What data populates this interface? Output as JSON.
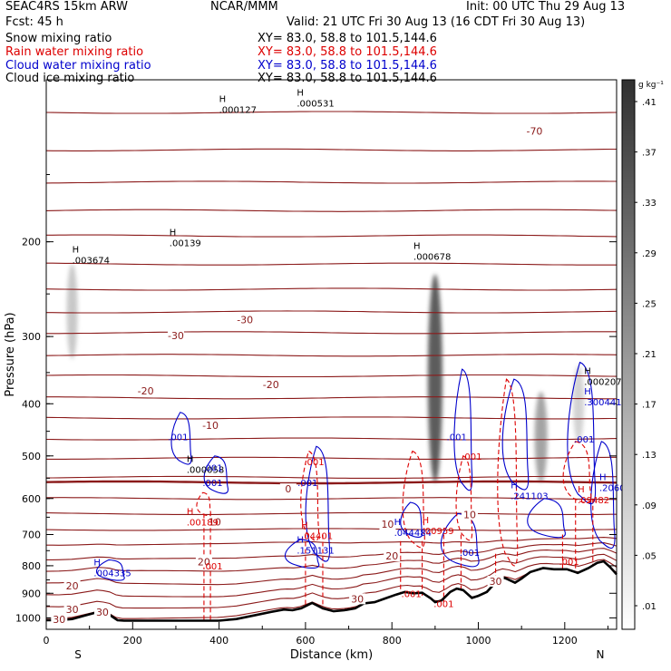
{
  "header": {
    "model": "SEAC4RS 15km ARW",
    "org": "NCAR/MMM",
    "init": "Init: 00 UTC Thu 29 Aug 13",
    "fcst": "Fcst:    45 h",
    "valid": "Valid: 21 UTC Fri 30 Aug 13 (16 CDT Fri 30 Aug 13)",
    "fields": [
      {
        "name": "Snow mixing ratio",
        "xy": "XY=   83.0, 58.8 to 101.5,144.6",
        "color": "#000000"
      },
      {
        "name": "Rain water mixing ratio",
        "xy": "XY=  83.0, 58.8 to 101.5,144.6",
        "color": "#dd0000"
      },
      {
        "name": "Cloud water mixing ratio",
        "xy": "XY=  83.0, 58.8 to 101.5,144.6",
        "color": "#0000cc"
      },
      {
        "name": "Cloud ice mixing ratio",
        "xy": "XY=   83.0, 58.8 to 101.5,144.6",
        "color": "#000000"
      }
    ]
  },
  "chart_data": {
    "type": "heatmap",
    "xlabel": "Distance (km)",
    "ylabel": "Pressure (hPa)",
    "xlim": [
      0,
      1320
    ],
    "ylim": [
      1050,
      100
    ],
    "y_scale": "log",
    "x_ticks": [
      0,
      200,
      400,
      600,
      800,
      1000,
      1200
    ],
    "y_ticks": [
      200,
      300,
      400,
      500,
      600,
      700,
      800,
      900,
      1000
    ],
    "x_end_labels": {
      "left": "S",
      "right": "N"
    },
    "colorbar": {
      "unit": "g kg⁻¹",
      "ticks": [
        ".01",
        ".05",
        ".09",
        ".13",
        ".17",
        ".21",
        ".25",
        ".29",
        ".33",
        ".37",
        ".41"
      ]
    },
    "terrain_surface_pressure": [
      [
        0,
        1010
      ],
      [
        30,
        1010
      ],
      [
        60,
        1005
      ],
      [
        90,
        990
      ],
      [
        120,
        975
      ],
      [
        145,
        985
      ],
      [
        165,
        1010
      ],
      [
        180,
        1012
      ],
      [
        300,
        1012
      ],
      [
        380,
        1012
      ],
      [
        400,
        1012
      ],
      [
        440,
        1005
      ],
      [
        480,
        990
      ],
      [
        520,
        975
      ],
      [
        550,
        965
      ],
      [
        570,
        968
      ],
      [
        590,
        960
      ],
      [
        615,
        938
      ],
      [
        640,
        960
      ],
      [
        665,
        972
      ],
      [
        690,
        968
      ],
      [
        715,
        960
      ],
      [
        735,
        940
      ],
      [
        760,
        935
      ],
      [
        785,
        920
      ],
      [
        810,
        905
      ],
      [
        830,
        895
      ],
      [
        850,
        900
      ],
      [
        870,
        898
      ],
      [
        890,
        920
      ],
      [
        900,
        935
      ],
      [
        915,
        928
      ],
      [
        935,
        895
      ],
      [
        950,
        882
      ],
      [
        965,
        888
      ],
      [
        985,
        918
      ],
      [
        1000,
        910
      ],
      [
        1020,
        895
      ],
      [
        1045,
        850
      ],
      [
        1060,
        842
      ],
      [
        1085,
        860
      ],
      [
        1100,
        845
      ],
      [
        1120,
        822
      ],
      [
        1150,
        808
      ],
      [
        1175,
        812
      ],
      [
        1205,
        812
      ],
      [
        1230,
        825
      ],
      [
        1255,
        808
      ],
      [
        1275,
        790
      ],
      [
        1290,
        785
      ],
      [
        1305,
        805
      ],
      [
        1320,
        830
      ]
    ],
    "isotherm_labels": [
      {
        "x": 230,
        "p": 380,
        "value": "-20"
      },
      {
        "x": 300,
        "p": 300,
        "value": "-30"
      },
      {
        "x": 460,
        "p": 280,
        "value": "-30"
      },
      {
        "x": 380,
        "p": 440,
        "value": "-10"
      },
      {
        "x": 520,
        "p": 370,
        "value": "-20"
      },
      {
        "x": 1130,
        "p": 125,
        "value": "-70"
      },
      {
        "x": 560,
        "p": 578,
        "value": "0"
      },
      {
        "x": 390,
        "p": 665,
        "value": "10"
      },
      {
        "x": 790,
        "p": 672,
        "value": "10"
      },
      {
        "x": 980,
        "p": 645,
        "value": "10"
      },
      {
        "x": 365,
        "p": 790,
        "value": "20"
      },
      {
        "x": 800,
        "p": 770,
        "value": "20"
      },
      {
        "x": 60,
        "p": 875,
        "value": "20"
      },
      {
        "x": 60,
        "p": 968,
        "value": "30"
      },
      {
        "x": 130,
        "p": 980,
        "value": "30"
      },
      {
        "x": 720,
        "p": 925,
        "value": "30"
      },
      {
        "x": 1040,
        "p": 858,
        "value": "30"
      },
      {
        "x": 30,
        "p": 1010,
        "value": "30"
      }
    ],
    "maxima_labels": [
      {
        "x": 60,
        "p": 215,
        "value": ".003674",
        "color": "#000000"
      },
      {
        "x": 285,
        "p": 200,
        "value": ".00139",
        "color": "#000000"
      },
      {
        "x": 400,
        "p": 113,
        "value": ".000127",
        "color": "#000000"
      },
      {
        "x": 580,
        "p": 110,
        "value": ".000531",
        "color": "#000000"
      },
      {
        "x": 850,
        "p": 212,
        "value": ".000678",
        "color": "#000000"
      },
      {
        "x": 325,
        "p": 527,
        "value": ".000058",
        "color": "#000000"
      },
      {
        "x": 1245,
        "p": 362,
        "value": ".000207",
        "color": "#000000"
      },
      {
        "x": 1245,
        "p": 395,
        "value": ".300441",
        "color": "#0000cc"
      },
      {
        "x": 1075,
        "p": 590,
        "value": ".241103",
        "color": "#0000cc"
      },
      {
        "x": 1280,
        "p": 570,
        "value": ".2060",
        "color": "#0000cc"
      },
      {
        "x": 805,
        "p": 690,
        "value": ".044484",
        "color": "#0000cc"
      },
      {
        "x": 580,
        "p": 745,
        "value": ".151131",
        "color": "#0000cc"
      },
      {
        "x": 110,
        "p": 820,
        "value": ".004335",
        "color": "#0000cc"
      },
      {
        "x": 325,
        "p": 660,
        "value": ".00189",
        "color": "#dd0000"
      },
      {
        "x": 590,
        "p": 700,
        "value": ".04401",
        "color": "#dd0000"
      },
      {
        "x": 870,
        "p": 685,
        "value": ".00959",
        "color": "#dd0000"
      },
      {
        "x": 1230,
        "p": 600,
        "value": ".09482",
        "color": "#dd0000"
      }
    ],
    "contour_labels": [
      {
        "x": 305,
        "p": 460,
        "value": ".001",
        "color": "#0000cc"
      },
      {
        "x": 385,
        "p": 525,
        "value": ".001",
        "color": "#0000cc"
      },
      {
        "x": 385,
        "p": 560,
        "value": ".001",
        "color": "#0000cc"
      },
      {
        "x": 605,
        "p": 560,
        "value": ".001",
        "color": "#0000cc"
      },
      {
        "x": 950,
        "p": 460,
        "value": ".001",
        "color": "#0000cc"
      },
      {
        "x": 980,
        "p": 755,
        "value": ".001",
        "color": "#0000cc"
      },
      {
        "x": 1245,
        "p": 465,
        "value": ".001",
        "color": "#0000cc"
      },
      {
        "x": 620,
        "p": 512,
        "value": ".001",
        "color": "#dd0000"
      },
      {
        "x": 985,
        "p": 500,
        "value": ".001",
        "color": "#dd0000"
      },
      {
        "x": 385,
        "p": 800,
        "value": ".001",
        "color": "#dd0000"
      },
      {
        "x": 845,
        "p": 900,
        "value": ".001",
        "color": "#dd0000"
      },
      {
        "x": 920,
        "p": 940,
        "value": ".001",
        "color": "#dd0000"
      },
      {
        "x": 1210,
        "p": 785,
        "value": ".001",
        "color": "#dd0000"
      }
    ],
    "gray_columns": [
      {
        "x": 60,
        "p_top": 220,
        "p_bot": 330,
        "w": 8,
        "intensity": 0.3
      },
      {
        "x": 900,
        "p_top": 230,
        "p_bot": 560,
        "w": 12,
        "intensity": 0.9
      },
      {
        "x": 1145,
        "p_top": 380,
        "p_bot": 560,
        "w": 10,
        "intensity": 0.5
      },
      {
        "x": 1232,
        "p_top": 340,
        "p_bot": 470,
        "w": 8,
        "intensity": 0.25
      }
    ]
  }
}
